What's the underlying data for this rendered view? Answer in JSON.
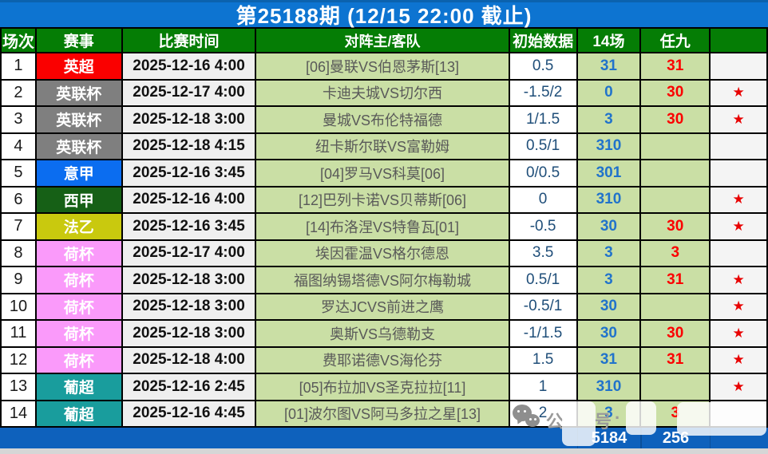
{
  "title": "第25188期 (12/15 22:00 截止)",
  "columns": {
    "match_no": "场次",
    "league": "赛事",
    "time": "比赛时间",
    "teams": "对阵主/客队",
    "odds": "初始数据",
    "c14": "14场",
    "r9": "任九",
    "star": ""
  },
  "rows": [
    {
      "no": "1",
      "league": "英超",
      "league_color": "#fa0000",
      "time": "2025-12-16 4:00",
      "teams": "[06]曼联VS伯恩茅斯[13]",
      "odds": "0.5",
      "c14": "31",
      "r9": "31",
      "star": ""
    },
    {
      "no": "2",
      "league": "英联杯",
      "league_color": "#7f7f7f",
      "time": "2025-12-17 4:00",
      "teams": "卡迪夫城VS切尔西",
      "odds": "-1.5/2",
      "c14": "0",
      "r9": "30",
      "star": "★"
    },
    {
      "no": "3",
      "league": "英联杯",
      "league_color": "#7f7f7f",
      "time": "2025-12-18 3:00",
      "teams": "曼城VS布伦特福德",
      "odds": "1/1.5",
      "c14": "3",
      "r9": "30",
      "star": "★"
    },
    {
      "no": "4",
      "league": "英联杯",
      "league_color": "#7f7f7f",
      "time": "2025-12-18 4:15",
      "teams": "纽卡斯尔联VS富勒姆",
      "odds": "0.5/1",
      "c14": "310",
      "r9": "",
      "star": ""
    },
    {
      "no": "5",
      "league": "意甲",
      "league_color": "#0b6df0",
      "time": "2025-12-16 3:45",
      "teams": "[04]罗马VS科莫[06]",
      "odds": "0/0.5",
      "c14": "301",
      "r9": "",
      "star": ""
    },
    {
      "no": "6",
      "league": "西甲",
      "league_color": "#166016",
      "time": "2025-12-16 4:00",
      "teams": "[12]巴列卡诺VS贝蒂斯[06]",
      "odds": "0",
      "c14": "310",
      "r9": "",
      "star": "★"
    },
    {
      "no": "7",
      "league": "法乙",
      "league_color": "#c9c90e",
      "time": "2025-12-16 3:45",
      "teams": "[14]布洛涅VS特鲁瓦[01]",
      "odds": "-0.5",
      "c14": "30",
      "r9": "30",
      "star": "★"
    },
    {
      "no": "8",
      "league": "荷杯",
      "league_color": "#fa9afa",
      "time": "2025-12-17 4:00",
      "teams": "埃因霍温VS格尔德恩",
      "odds": "3.5",
      "c14": "3",
      "r9": "3",
      "star": ""
    },
    {
      "no": "9",
      "league": "荷杯",
      "league_color": "#fa9afa",
      "time": "2025-12-18 3:00",
      "teams": "福图纳锡塔德VS阿尔梅勒城",
      "odds": "0.5/1",
      "c14": "3",
      "r9": "31",
      "star": "★"
    },
    {
      "no": "10",
      "league": "荷杯",
      "league_color": "#fa9afa",
      "time": "2025-12-18 3:00",
      "teams": "罗达JCVS前进之鹰",
      "odds": "-0.5/1",
      "c14": "30",
      "r9": "",
      "star": "★"
    },
    {
      "no": "11",
      "league": "荷杯",
      "league_color": "#fa9afa",
      "time": "2025-12-18 3:00",
      "teams": "奥斯VS乌德勒支",
      "odds": "-1/1.5",
      "c14": "30",
      "r9": "30",
      "star": "★"
    },
    {
      "no": "12",
      "league": "荷杯",
      "league_color": "#fa9afa",
      "time": "2025-12-18 4:00",
      "teams": "费耶诺德VS海伦芬",
      "odds": "1.5",
      "c14": "31",
      "r9": "31",
      "star": "★"
    },
    {
      "no": "13",
      "league": "葡超",
      "league_color": "#199d9d",
      "time": "2025-12-16 2:45",
      "teams": "[05]布拉加VS圣克拉拉[11]",
      "odds": "1",
      "c14": "310",
      "r9": "",
      "star": "★"
    },
    {
      "no": "14",
      "league": "葡超",
      "league_color": "#199d9d",
      "time": "2025-12-16 4:45",
      "teams": "[01]波尔图VS阿马多拉之星[13]",
      "odds": "2",
      "c14": "3",
      "r9": "3",
      "star": ""
    }
  ],
  "footer": {
    "c14_total": "5184",
    "r9_total": "256"
  },
  "watermark": {
    "icon": "wechat-icon",
    "char1": "公",
    "char2": "号",
    "char3": "·"
  },
  "colors": {
    "title_bar": "#0d74d1",
    "header_bg": "#057d05",
    "cell_green": "#cadfa5",
    "c14_text": "#2173cb",
    "r9_text": "#fb0000",
    "footer_bar": "#0e61bc",
    "star": "#e80000"
  }
}
